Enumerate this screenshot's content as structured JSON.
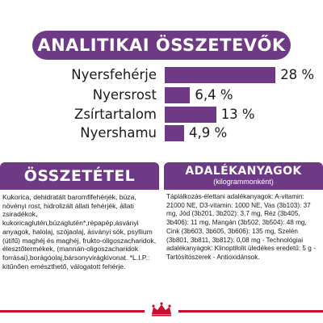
{
  "header": {
    "title": "ANALITIKAI ÖSSZETEVŐK",
    "color": "#6e3a86"
  },
  "nutrients": [
    {
      "label": "Nyersfehérje",
      "value_text": "28 %",
      "value": 28
    },
    {
      "label": "Nyersrost",
      "value_text": "6,4 %",
      "value": 6.4
    },
    {
      "label": "Zsírtartalom",
      "value_text": "13 %",
      "value": 13
    },
    {
      "label": "Nyershamu",
      "value_text": "4,9 %",
      "value": 4.9
    }
  ],
  "composition": {
    "title": "ÖSSZETÉTEL",
    "text": "Kukorica, dehidratált baromfifehérjék, búza, növényi rost, hidrolizált állati fehérjék, állati zsiradékok, kukoricaglutén,búzaglutén*,répapép,ásványi anyagok, halolaj, szójaolaj, ásványi sók, psyllium (útifű) maghéj és maghéj, frukto-oligoszacharidok, élesztőtermékek, (mannán-oligoszacharidok forrásai),borágóolaj,bársonyvirágkivonat. *L.I.P.: kitűnően emészthető, válogatott fehérje."
  },
  "additives": {
    "title": "ADALÉKANYAGOK",
    "subtitle": "(kilogrammonként)",
    "text": "Táplálkozás-élettani adalékanyagok: A-vitamin: 21000 NE, D3-vitamin: 1000 NE, Vas (3b103): 37 mg, Jód (3b201, 3b202): 3,7 mg, Réz (3b405, 3b406): 11 mg, Mangán (3b502, 3b504): 48 mg, Cink (3b603, 3b605, 3b606): 135 mg, Szelén (3b801, 3b811, 3b812): 0,08 mg - Technológiai adalékanyagok: Klinoptilolit üledékes eredetű: 5 g - Tartósítószerek - Antioxidánsok."
  },
  "footer": {
    "line_color": "#c8102e",
    "logo_icon": "crown-icon"
  }
}
